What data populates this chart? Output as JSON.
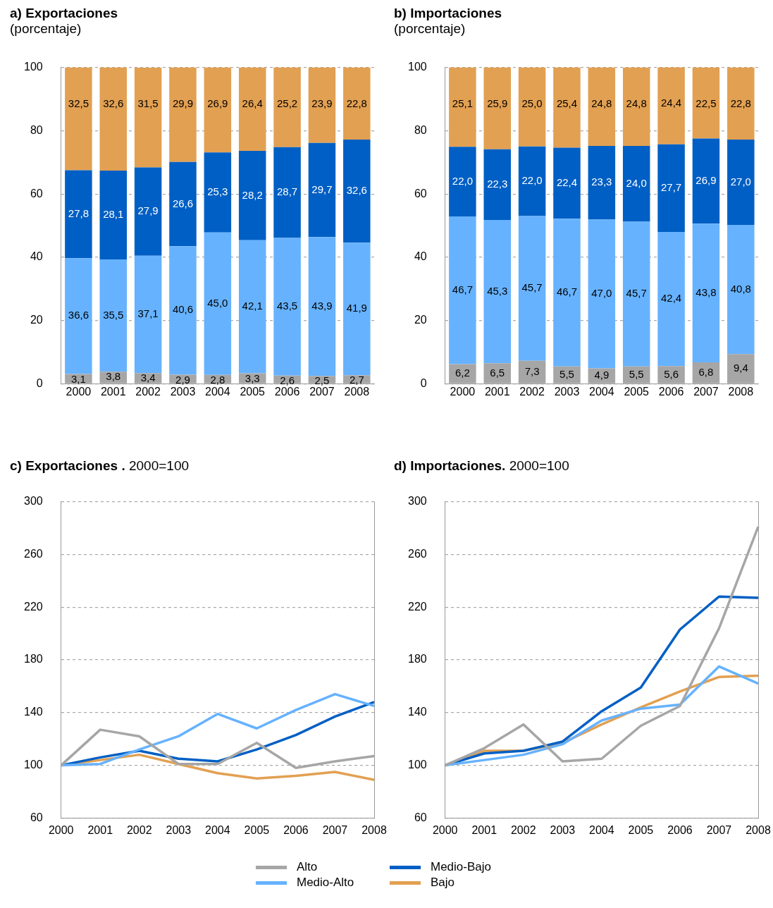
{
  "chart_data": [
    {
      "type": "bar",
      "title": "a) Exportaciones",
      "subtitle": "(porcentaje)",
      "stacked": true,
      "categories": [
        "2000",
        "2001",
        "2002",
        "2003",
        "2004",
        "2005",
        "2006",
        "2007",
        "2008"
      ],
      "ylim": [
        0,
        100
      ],
      "yticks": [
        0,
        20,
        40,
        60,
        80,
        100
      ],
      "grid": "y",
      "series": [
        {
          "color": "#a6a6a6",
          "values": [
            3.1,
            3.8,
            3.4,
            2.9,
            2.8,
            3.3,
            2.6,
            2.5,
            2.7
          ],
          "value_labels": [
            "3,1",
            "3,8",
            "3,4",
            "2,9",
            "2,8",
            "3,3",
            "2,6",
            "2,5",
            "2,7"
          ]
        },
        {
          "color": "#66b2ff",
          "values": [
            36.6,
            35.5,
            37.1,
            40.6,
            45.0,
            42.1,
            43.5,
            43.9,
            41.9
          ],
          "value_labels": [
            "36,6",
            "35,5",
            "37,1",
            "40,6",
            "45,0",
            "42,1",
            "43,5",
            "43,9",
            "41,9"
          ]
        },
        {
          "color": "#005fc4",
          "values": [
            27.8,
            28.1,
            27.9,
            26.6,
            25.3,
            28.2,
            28.7,
            29.7,
            32.6
          ],
          "value_labels": [
            "27,8",
            "28,1",
            "27,9",
            "26,6",
            "25,3",
            "28,2",
            "28,7",
            "29,7",
            "32,6"
          ]
        },
        {
          "color": "#e2a052",
          "values": [
            32.5,
            32.6,
            31.5,
            29.9,
            26.9,
            26.4,
            25.2,
            23.9,
            22.8
          ],
          "value_labels": [
            "32,5",
            "32,6",
            "31,5",
            "29,9",
            "26,9",
            "26,4",
            "25,2",
            "23,9",
            "22,8"
          ]
        }
      ]
    },
    {
      "type": "bar",
      "title": "b) Importaciones",
      "subtitle": "(porcentaje)",
      "stacked": true,
      "categories": [
        "2000",
        "2001",
        "2002",
        "2003",
        "2004",
        "2005",
        "2006",
        "2007",
        "2008"
      ],
      "ylim": [
        0,
        100
      ],
      "yticks": [
        0,
        20,
        40,
        60,
        80,
        100
      ],
      "grid": "y",
      "series": [
        {
          "color": "#a6a6a6",
          "values": [
            6.2,
            6.5,
            7.3,
            5.5,
            4.9,
            5.5,
            5.6,
            6.8,
            9.4
          ],
          "value_labels": [
            "6,2",
            "6,5",
            "7,3",
            "5,5",
            "4,9",
            "5,5",
            "5,6",
            "6,8",
            "9,4"
          ]
        },
        {
          "color": "#66b2ff",
          "values": [
            46.7,
            45.3,
            45.7,
            46.7,
            47.0,
            45.7,
            42.4,
            43.8,
            40.8
          ],
          "value_labels": [
            "46,7",
            "45,3",
            "45,7",
            "46,7",
            "47,0",
            "45,7",
            "42,4",
            "43,8",
            "40,8"
          ]
        },
        {
          "color": "#005fc4",
          "values": [
            22.0,
            22.3,
            22.0,
            22.4,
            23.3,
            24.0,
            27.7,
            26.9,
            27.0
          ],
          "value_labels": [
            "22,0",
            "22,3",
            "22,0",
            "22,4",
            "23,3",
            "24,0",
            "27,7",
            "26,9",
            "27,0"
          ]
        },
        {
          "color": "#e2a052",
          "values": [
            25.1,
            25.9,
            25.0,
            25.4,
            24.8,
            24.8,
            24.4,
            22.5,
            22.8
          ],
          "value_labels": [
            "25,1",
            "25,9",
            "25,0",
            "25,4",
            "24,8",
            "24,8",
            "24,4",
            "22,5",
            "22,8"
          ]
        }
      ]
    },
    {
      "type": "line",
      "title": "c) Exportaciones .",
      "subtitle": "2000=100",
      "categories": [
        "2000",
        "2001",
        "2002",
        "2003",
        "2004",
        "2005",
        "2006",
        "2007",
        "2008"
      ],
      "ylim": [
        60,
        300
      ],
      "yticks": [
        60,
        100,
        140,
        180,
        220,
        260,
        300
      ],
      "grid": "y",
      "marker": "none",
      "line_style": "solid",
      "series": [
        {
          "color": "#a6a6a6",
          "values": [
            100,
            127,
            122,
            101,
            101,
            117,
            98,
            103,
            107
          ]
        },
        {
          "color": "#66b2ff",
          "values": [
            100,
            101,
            112,
            122,
            139,
            128,
            142,
            154,
            145
          ]
        },
        {
          "color": "#005fc4",
          "values": [
            100,
            106,
            111,
            105,
            103,
            112,
            123,
            137,
            148
          ]
        },
        {
          "color": "#e2a052",
          "values": [
            100,
            104,
            108,
            101,
            94,
            90,
            92,
            95,
            89
          ]
        }
      ]
    },
    {
      "type": "line",
      "title": "d) Importaciones.",
      "subtitle": "2000=100",
      "categories": [
        "2000",
        "2001",
        "2002",
        "2003",
        "2004",
        "2005",
        "2006",
        "2007",
        "2008"
      ],
      "ylim": [
        60,
        300
      ],
      "yticks": [
        60,
        100,
        140,
        180,
        220,
        260,
        300
      ],
      "grid": "y",
      "marker": "none",
      "line_style": "solid",
      "legend": "bottom",
      "series": [
        {
          "name": "Alto",
          "color": "#a6a6a6",
          "values": [
            100,
            113,
            131,
            103,
            105,
            130,
            145,
            204,
            281
          ]
        },
        {
          "name": "Medio-Alto",
          "color": "#66b2ff",
          "values": [
            100,
            104,
            108,
            116,
            134,
            143,
            146,
            175,
            162
          ]
        },
        {
          "name": "Medio-Bajo",
          "color": "#005fc4",
          "values": [
            100,
            109,
            111,
            118,
            141,
            159,
            203,
            228,
            227
          ]
        },
        {
          "name": "Bajo",
          "color": "#e2a052",
          "values": [
            100,
            111,
            111,
            117,
            131,
            144,
            156,
            167,
            168
          ]
        }
      ]
    }
  ]
}
